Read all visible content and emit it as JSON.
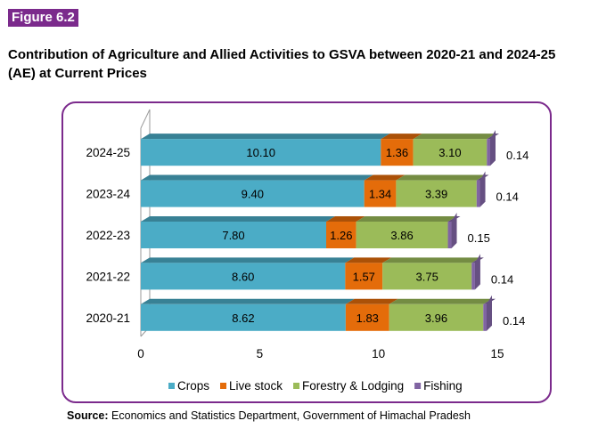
{
  "figure_label": "Figure 6.2",
  "title": "Contribution of Agriculture and Allied Activities to GSVA between 2020-21 and 2024-25 (AE) at Current Prices",
  "source": {
    "label": "Source:",
    "text": "Economics and Statistics Department, Government of Himachal Pradesh"
  },
  "chart_data": {
    "type": "bar",
    "orientation": "horizontal",
    "stacked": true,
    "categories": [
      "2024-25",
      "2023-24",
      "2022-23",
      "2021-22",
      "2020-21"
    ],
    "series": [
      {
        "name": "Crops",
        "color": "#4bacc6",
        "values": [
          10.1,
          9.4,
          7.8,
          8.6,
          8.62
        ]
      },
      {
        "name": "Live stock",
        "color": "#e46c0a",
        "values": [
          1.36,
          1.34,
          1.26,
          1.57,
          1.83
        ]
      },
      {
        "name": "Forestry & Lodging",
        "color": "#9bbb59",
        "values": [
          3.1,
          3.39,
          3.86,
          3.75,
          3.96
        ]
      },
      {
        "name": "Fishing",
        "color": "#8064a2",
        "values": [
          0.14,
          0.14,
          0.15,
          0.14,
          0.14
        ]
      }
    ],
    "xlim": [
      0,
      15
    ],
    "xticks": [
      0,
      5,
      10,
      15
    ],
    "legend_position": "bottom",
    "grid": false
  }
}
